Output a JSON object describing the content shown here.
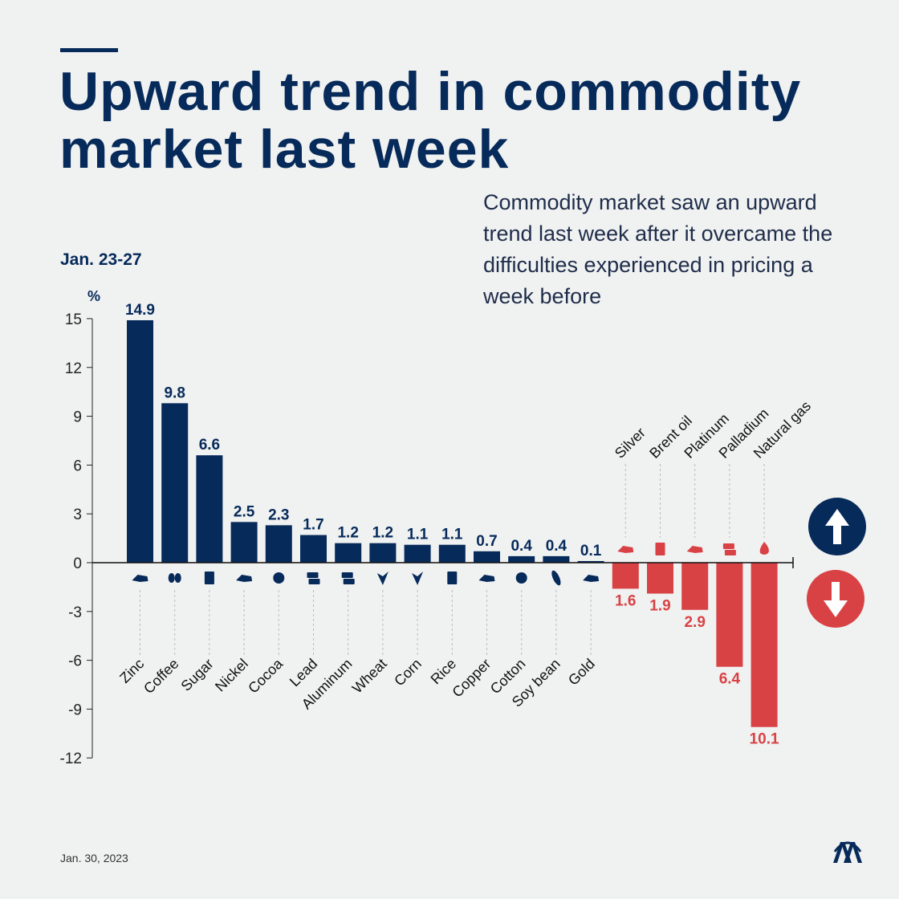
{
  "header": {
    "title": "Upward trend in commodity market last week",
    "subtitle": "Commodity market saw an upward trend last week after it overcame the difficulties experienced in pricing a week before",
    "period": "Jan. 23-27"
  },
  "footer": {
    "date": "Jan. 30, 2023",
    "logo_text": "AA"
  },
  "colors": {
    "positive": "#062a5a",
    "negative": "#d94245",
    "background": "#f0f1f1"
  },
  "chart_data": {
    "type": "bar",
    "title": "Upward trend in commodity market last week",
    "ylabel": "%",
    "ylim": [
      -12,
      15
    ],
    "yticks": [
      15,
      12,
      9,
      6,
      3,
      0,
      -3,
      -6,
      -9,
      -12
    ],
    "categories": [
      "Zinc",
      "Coffee",
      "Sugar",
      "Nickel",
      "Cocoa",
      "Lead",
      "Aluminum",
      "Wheat",
      "Corn",
      "Rice",
      "Copper",
      "Cotton",
      "Soy bean",
      "Gold",
      "Silver",
      "Brent oil",
      "Platinum",
      "Palladium",
      "Natural gas"
    ],
    "values": [
      14.9,
      9.8,
      6.6,
      2.5,
      2.3,
      1.7,
      1.2,
      1.2,
      1.1,
      1.1,
      0.7,
      0.4,
      0.4,
      0.1,
      -1.6,
      -1.9,
      -2.9,
      -6.4,
      -10.1
    ],
    "labels": [
      "14.9",
      "9.8",
      "6.6",
      "2.5",
      "2.3",
      "1.7",
      "1.2",
      "1.2",
      "1.1",
      "1.1",
      "0.7",
      "0.4",
      "0.4",
      "0.1",
      "1.6",
      "1.9",
      "2.9",
      "6.4",
      "10.1"
    ],
    "icons": [
      "metal-ore-icon",
      "coffee-bean-icon",
      "sugar-sack-icon",
      "metal-ore-icon",
      "cocoa-icon",
      "ingot-icon",
      "ingot-icon",
      "wheat-icon",
      "corn-icon",
      "rice-sack-icon",
      "metal-ore-icon",
      "cotton-icon",
      "soybean-icon",
      "metal-ore-icon",
      "metal-ore-icon",
      "oil-barrel-icon",
      "metal-ore-icon",
      "ingot-icon",
      "flame-icon"
    ],
    "legend": [
      "up-arrow-icon",
      "down-arrow-icon"
    ],
    "grid": false
  }
}
